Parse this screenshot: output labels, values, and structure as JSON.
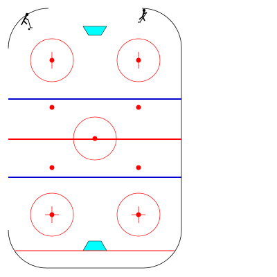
{
  "colors": {
    "background": "#ffffff",
    "boards": "#000000",
    "red_line": "#ff0000",
    "blue_line": "#0000cc",
    "circle": "#ff0000",
    "dot": "#ff0000",
    "crease": "#00ffff",
    "crease_outline": "#000000",
    "player": "#000000"
  },
  "icons": {
    "player_left": "hockey-player-icon",
    "player_right": "hockey-player-icon"
  },
  "rink": {
    "zones": [
      "defensive-zone",
      "neutral-zone",
      "offensive-zone"
    ],
    "faceoff_circles": 5,
    "faceoff_dots": 9
  }
}
